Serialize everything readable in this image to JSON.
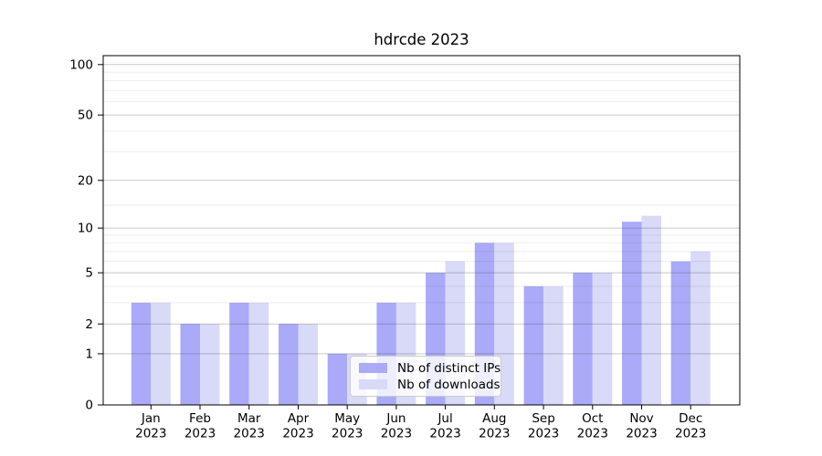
{
  "window": {
    "background": "#ffffff"
  },
  "chart_data": {
    "type": "bar",
    "title": "hdrcde 2023",
    "x_axis": {
      "months": [
        "Jan",
        "Feb",
        "Mar",
        "Apr",
        "May",
        "Jun",
        "Jul",
        "Aug",
        "Sep",
        "Oct",
        "Nov",
        "Dec"
      ],
      "year_label": "2023"
    },
    "y_axis": {
      "scale": "log10(1 + value); 0 sits on the baseline",
      "tick_values": [
        0,
        1,
        2,
        5,
        10,
        20,
        50,
        100
      ],
      "tick_labels": [
        "0",
        "1",
        "2",
        "5",
        "10",
        "20",
        "50",
        "100"
      ],
      "minor_gridline_values": [
        3,
        4,
        6,
        7,
        8,
        9,
        14,
        30,
        40,
        60,
        70,
        80,
        90
      ],
      "range": [
        0,
        105
      ],
      "grid": "horizontal, drawn over bars"
    },
    "series": [
      {
        "name": "Nb of distinct IPs",
        "color": "#aaaaf8",
        "values": [
          3,
          2,
          3,
          2,
          1,
          3,
          5,
          8,
          4,
          5,
          11,
          6
        ]
      },
      {
        "name": "Nb of downloads",
        "color": "#d9d9f8",
        "values": [
          3,
          2,
          3,
          2,
          1,
          3,
          6,
          8,
          4,
          5,
          12,
          7
        ]
      }
    ],
    "legend": {
      "position": "inside plot, lower middle",
      "labels": [
        "Nb of distinct IPs",
        "Nb of downloads"
      ]
    },
    "colors": {
      "axis": "#000000",
      "text": "#000000",
      "grid_major": "#c9c9c9",
      "grid_minor": "#efefef",
      "legend_border": "#cccccc",
      "legend_background": "rgba(255,255,255,0.8)"
    }
  }
}
